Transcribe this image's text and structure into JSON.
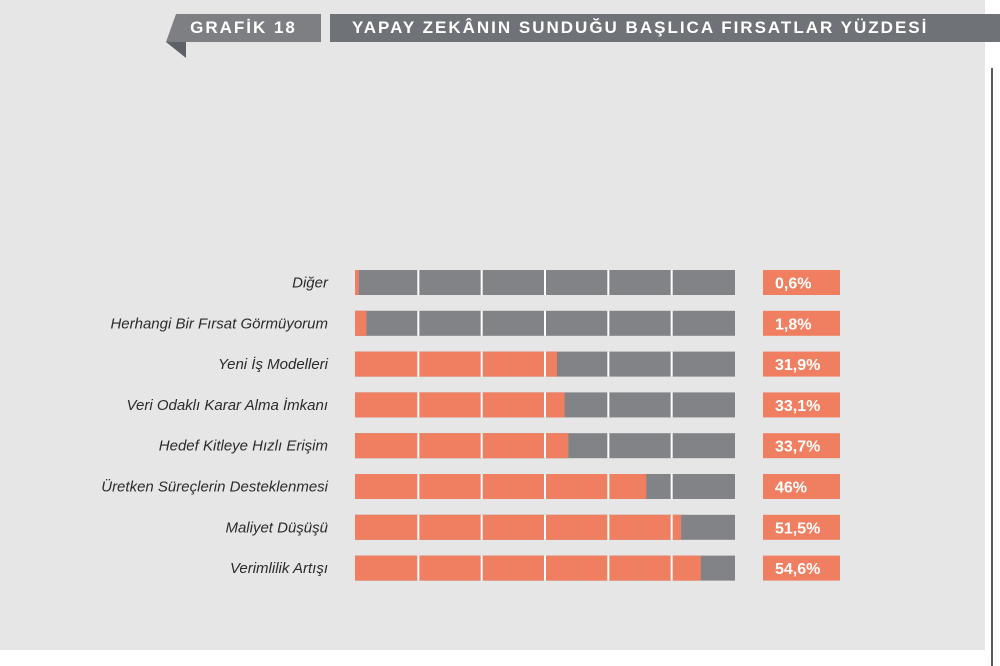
{
  "header": {
    "tab_label": "GRAFİK 18",
    "title": "YAPAY ZEKÂNIN SUNDUĞU BAŞLICA FIRSATLAR YÜZDESİ"
  },
  "colors": {
    "fill": "#f07f61",
    "track": "#828386",
    "segment_divider": "#ffffff",
    "background": "#e6e6e7"
  },
  "chart_data": {
    "type": "bar",
    "orientation": "horizontal",
    "title": "YAPAY ZEKÂNIN SUNDUĞU BAŞLICA FIRSATLAR YÜZDESİ",
    "xlim": [
      0,
      60
    ],
    "categories": [
      "Diğer",
      "Herhangi Bir Fırsat Görmüyorum",
      "Yeni İş Modelleri",
      "Veri Odaklı Karar Alma İmkanı",
      "Hedef Kitleye Hızlı Erişim",
      "Üretken Süreçlerin Desteklenmesi",
      "Maliyet Düşüşü",
      "Verimlilik Artışı"
    ],
    "values": [
      0.6,
      1.8,
      31.9,
      33.1,
      33.7,
      46,
      51.5,
      54.6
    ],
    "value_labels": [
      "0,6%",
      "1,8%",
      "31,9%",
      "33,1%",
      "33,7%",
      "46%",
      "51,5%",
      "54,6%"
    ]
  }
}
